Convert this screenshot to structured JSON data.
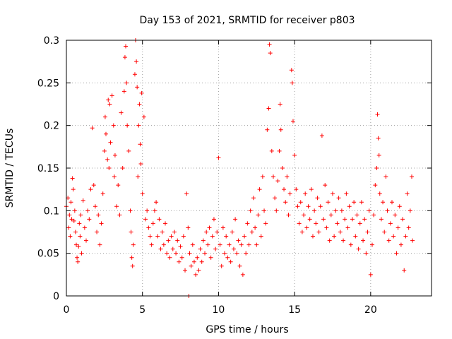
{
  "chart_data": {
    "type": "scatter",
    "title": "Day 153 of 2021, SRMTID for receiver p803",
    "xlabel": "GPS time / hours",
    "ylabel": "SRMTID / TECUs",
    "xlim": [
      0,
      24
    ],
    "ylim": [
      0,
      0.3
    ],
    "xticks": [
      0,
      5,
      10,
      15,
      20
    ],
    "xtick_labels": [
      "0",
      "5",
      "10",
      "15",
      "20"
    ],
    "yticks": [
      0,
      0.05,
      0.1,
      0.15,
      0.2,
      0.25,
      0.3
    ],
    "ytick_labels": [
      "0",
      "0.05",
      "0.1",
      "0.15",
      "0.2",
      "0.25",
      "0.3"
    ],
    "grid": true,
    "marker": "plus",
    "colors": {
      "points": "#ff0000",
      "axes": "#000000",
      "grid": "#a0a0a0"
    },
    "series": [
      {
        "name": "SRMTID",
        "points": [
          [
            0.0,
            0.105
          ],
          [
            0.1,
            0.115
          ],
          [
            0.15,
            0.08
          ],
          [
            0.2,
            0.095
          ],
          [
            0.25,
            0.07
          ],
          [
            0.3,
            0.11
          ],
          [
            0.35,
            0.09
          ],
          [
            0.4,
            0.138
          ],
          [
            0.45,
            0.125
          ],
          [
            0.5,
            0.088
          ],
          [
            0.55,
            0.1
          ],
          [
            0.6,
            0.075
          ],
          [
            0.65,
            0.06
          ],
          [
            0.7,
            0.045
          ],
          [
            0.75,
            0.04
          ],
          [
            0.8,
            0.058
          ],
          [
            0.85,
            0.085
          ],
          [
            0.9,
            0.07
          ],
          [
            0.95,
            0.095
          ],
          [
            1.0,
            0.05
          ],
          [
            1.1,
            0.112
          ],
          [
            1.2,
            0.08
          ],
          [
            1.3,
            0.065
          ],
          [
            1.4,
            0.1
          ],
          [
            1.5,
            0.09
          ],
          [
            1.6,
            0.125
          ],
          [
            1.7,
            0.197
          ],
          [
            1.8,
            0.13
          ],
          [
            1.9,
            0.105
          ],
          [
            2.0,
            0.075
          ],
          [
            2.1,
            0.095
          ],
          [
            2.2,
            0.06
          ],
          [
            2.3,
            0.085
          ],
          [
            2.4,
            0.12
          ],
          [
            2.5,
            0.17
          ],
          [
            2.55,
            0.21
          ],
          [
            2.6,
            0.19
          ],
          [
            2.7,
            0.16
          ],
          [
            2.75,
            0.23
          ],
          [
            2.8,
            0.15
          ],
          [
            2.85,
            0.225
          ],
          [
            2.9,
            0.18
          ],
          [
            3.0,
            0.235
          ],
          [
            3.1,
            0.2
          ],
          [
            3.15,
            0.14
          ],
          [
            3.2,
            0.165
          ],
          [
            3.3,
            0.105
          ],
          [
            3.4,
            0.13
          ],
          [
            3.5,
            0.095
          ],
          [
            3.6,
            0.215
          ],
          [
            3.7,
            0.15
          ],
          [
            3.8,
            0.24
          ],
          [
            3.85,
            0.28
          ],
          [
            3.9,
            0.293
          ],
          [
            3.95,
            0.25
          ],
          [
            4.0,
            0.2
          ],
          [
            4.1,
            0.17
          ],
          [
            4.2,
            0.1
          ],
          [
            4.25,
            0.075
          ],
          [
            4.3,
            0.045
          ],
          [
            4.35,
            0.035
          ],
          [
            4.4,
            0.06
          ],
          [
            4.5,
            0.26
          ],
          [
            4.55,
            0.3
          ],
          [
            4.6,
            0.275
          ],
          [
            4.65,
            0.245
          ],
          [
            4.7,
            0.14
          ],
          [
            4.75,
            0.2
          ],
          [
            4.8,
            0.225
          ],
          [
            4.85,
            0.178
          ],
          [
            4.9,
            0.155
          ],
          [
            4.95,
            0.238
          ],
          [
            5.0,
            0.12
          ],
          [
            5.1,
            0.21
          ],
          [
            5.2,
            0.09
          ],
          [
            5.3,
            0.1
          ],
          [
            5.4,
            0.08
          ],
          [
            5.5,
            0.07
          ],
          [
            5.6,
            0.06
          ],
          [
            5.7,
            0.085
          ],
          [
            5.8,
            0.1
          ],
          [
            5.9,
            0.11
          ],
          [
            6.0,
            0.07
          ],
          [
            6.1,
            0.09
          ],
          [
            6.2,
            0.055
          ],
          [
            6.3,
            0.075
          ],
          [
            6.4,
            0.06
          ],
          [
            6.5,
            0.085
          ],
          [
            6.6,
            0.05
          ],
          [
            6.7,
            0.065
          ],
          [
            6.8,
            0.045
          ],
          [
            6.9,
            0.07
          ],
          [
            7.0,
            0.055
          ],
          [
            7.1,
            0.075
          ],
          [
            7.2,
            0.05
          ],
          [
            7.3,
            0.065
          ],
          [
            7.4,
            0.04
          ],
          [
            7.5,
            0.058
          ],
          [
            7.6,
            0.045
          ],
          [
            7.7,
            0.07
          ],
          [
            7.8,
            0.03
          ],
          [
            7.9,
            0.12
          ],
          [
            8.0,
            0.08
          ],
          [
            8.05,
            0.0
          ],
          [
            8.1,
            0.05
          ],
          [
            8.2,
            0.035
          ],
          [
            8.3,
            0.06
          ],
          [
            8.4,
            0.04
          ],
          [
            8.5,
            0.025
          ],
          [
            8.6,
            0.045
          ],
          [
            8.7,
            0.03
          ],
          [
            8.8,
            0.055
          ],
          [
            8.9,
            0.04
          ],
          [
            9.0,
            0.065
          ],
          [
            9.1,
            0.05
          ],
          [
            9.2,
            0.075
          ],
          [
            9.3,
            0.06
          ],
          [
            9.4,
            0.08
          ],
          [
            9.5,
            0.045
          ],
          [
            9.6,
            0.07
          ],
          [
            9.7,
            0.09
          ],
          [
            9.8,
            0.055
          ],
          [
            9.9,
            0.075
          ],
          [
            10.0,
            0.162
          ],
          [
            10.1,
            0.06
          ],
          [
            10.2,
            0.035
          ],
          [
            10.3,
            0.08
          ],
          [
            10.4,
            0.05
          ],
          [
            10.5,
            0.07
          ],
          [
            10.6,
            0.045
          ],
          [
            10.7,
            0.06
          ],
          [
            10.8,
            0.04
          ],
          [
            10.9,
            0.075
          ],
          [
            11.0,
            0.055
          ],
          [
            11.1,
            0.09
          ],
          [
            11.2,
            0.05
          ],
          [
            11.3,
            0.065
          ],
          [
            11.4,
            0.035
          ],
          [
            11.5,
            0.06
          ],
          [
            11.6,
            0.025
          ],
          [
            11.7,
            0.07
          ],
          [
            11.8,
            0.05
          ],
          [
            11.9,
            0.085
          ],
          [
            12.0,
            0.06
          ],
          [
            12.1,
            0.1
          ],
          [
            12.2,
            0.075
          ],
          [
            12.3,
            0.115
          ],
          [
            12.4,
            0.08
          ],
          [
            12.5,
            0.06
          ],
          [
            12.6,
            0.095
          ],
          [
            12.7,
            0.125
          ],
          [
            12.8,
            0.07
          ],
          [
            12.9,
            0.14
          ],
          [
            13.0,
            0.1
          ],
          [
            13.1,
            0.085
          ],
          [
            13.2,
            0.195
          ],
          [
            13.3,
            0.22
          ],
          [
            13.35,
            0.295
          ],
          [
            13.4,
            0.285
          ],
          [
            13.5,
            0.17
          ],
          [
            13.6,
            0.14
          ],
          [
            13.7,
            0.115
          ],
          [
            13.8,
            0.1
          ],
          [
            13.9,
            0.135
          ],
          [
            14.0,
            0.17
          ],
          [
            14.05,
            0.225
          ],
          [
            14.1,
            0.195
          ],
          [
            14.2,
            0.15
          ],
          [
            14.3,
            0.125
          ],
          [
            14.4,
            0.11
          ],
          [
            14.5,
            0.14
          ],
          [
            14.6,
            0.095
          ],
          [
            14.7,
            0.12
          ],
          [
            14.8,
            0.265
          ],
          [
            14.85,
            0.25
          ],
          [
            14.9,
            0.205
          ],
          [
            15.0,
            0.165
          ],
          [
            15.1,
            0.125
          ],
          [
            15.2,
            0.105
          ],
          [
            15.3,
            0.085
          ],
          [
            15.4,
            0.11
          ],
          [
            15.5,
            0.075
          ],
          [
            15.6,
            0.095
          ],
          [
            15.7,
            0.12
          ],
          [
            15.8,
            0.08
          ],
          [
            15.9,
            0.105
          ],
          [
            16.0,
            0.09
          ],
          [
            16.1,
            0.125
          ],
          [
            16.2,
            0.07
          ],
          [
            16.3,
            0.1
          ],
          [
            16.4,
            0.085
          ],
          [
            16.5,
            0.115
          ],
          [
            16.6,
            0.075
          ],
          [
            16.7,
            0.105
          ],
          [
            16.8,
            0.188
          ],
          [
            16.9,
            0.09
          ],
          [
            17.0,
            0.13
          ],
          [
            17.1,
            0.08
          ],
          [
            17.2,
            0.11
          ],
          [
            17.3,
            0.065
          ],
          [
            17.4,
            0.095
          ],
          [
            17.5,
            0.12
          ],
          [
            17.6,
            0.07
          ],
          [
            17.7,
            0.1
          ],
          [
            17.8,
            0.085
          ],
          [
            17.9,
            0.115
          ],
          [
            18.0,
            0.075
          ],
          [
            18.1,
            0.1
          ],
          [
            18.2,
            0.065
          ],
          [
            18.3,
            0.09
          ],
          [
            18.4,
            0.12
          ],
          [
            18.5,
            0.08
          ],
          [
            18.6,
            0.105
          ],
          [
            18.7,
            0.06
          ],
          [
            18.8,
            0.09
          ],
          [
            18.9,
            0.11
          ],
          [
            19.0,
            0.07
          ],
          [
            19.1,
            0.095
          ],
          [
            19.2,
            0.055
          ],
          [
            19.3,
            0.085
          ],
          [
            19.4,
            0.11
          ],
          [
            19.5,
            0.065
          ],
          [
            19.6,
            0.09
          ],
          [
            19.7,
            0.05
          ],
          [
            19.8,
            0.075
          ],
          [
            19.9,
            0.1
          ],
          [
            20.0,
            0.025
          ],
          [
            20.1,
            0.06
          ],
          [
            20.2,
            0.095
          ],
          [
            20.3,
            0.13
          ],
          [
            20.4,
            0.15
          ],
          [
            20.45,
            0.213
          ],
          [
            20.5,
            0.185
          ],
          [
            20.55,
            0.165
          ],
          [
            20.6,
            0.12
          ],
          [
            20.7,
            0.09
          ],
          [
            20.8,
            0.11
          ],
          [
            20.9,
            0.075
          ],
          [
            21.0,
            0.14
          ],
          [
            21.1,
            0.1
          ],
          [
            21.2,
            0.065
          ],
          [
            21.3,
            0.085
          ],
          [
            21.4,
            0.11
          ],
          [
            21.5,
            0.07
          ],
          [
            21.6,
            0.095
          ],
          [
            21.7,
            0.05
          ],
          [
            21.8,
            0.08
          ],
          [
            21.9,
            0.105
          ],
          [
            22.0,
            0.06
          ],
          [
            22.1,
            0.09
          ],
          [
            22.2,
            0.03
          ],
          [
            22.3,
            0.07
          ],
          [
            22.4,
            0.12
          ],
          [
            22.5,
            0.08
          ],
          [
            22.6,
            0.1
          ],
          [
            22.7,
            0.14
          ],
          [
            22.75,
            0.065
          ]
        ]
      }
    ]
  }
}
